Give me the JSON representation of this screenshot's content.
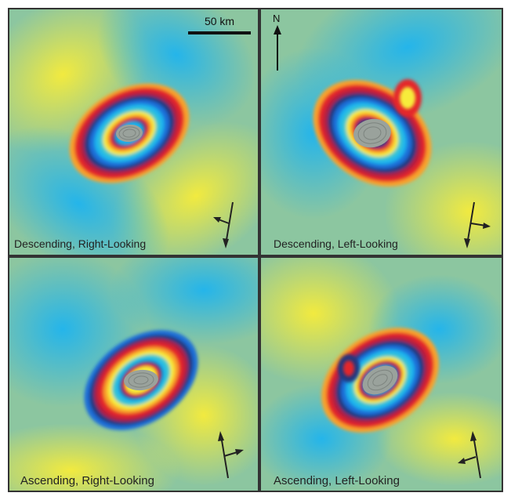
{
  "scale_bar": {
    "label": "50 km"
  },
  "north_arrow": {
    "label": "N"
  },
  "panels": [
    {
      "label": "Descending, Right-Looking",
      "orbit": "descending",
      "look": "right"
    },
    {
      "label": "Descending, Left-Looking",
      "orbit": "descending",
      "look": "left"
    },
    {
      "label": "Ascending, Right-Looking",
      "orbit": "ascending",
      "look": "right"
    },
    {
      "label": "Ascending, Left-Looking",
      "orbit": "ascending",
      "look": "left"
    }
  ],
  "colors": {
    "background": "#8cc6a0",
    "fringe_cycle": [
      "#f7ec3a",
      "#f9a22a",
      "#e4262b",
      "#b21e3f",
      "#23377f",
      "#1b6ed8",
      "#1fb4ee",
      "#3bc7cf"
    ],
    "core": "#9aa29c",
    "frame": "#333333"
  },
  "icons": [
    "north-arrow-icon",
    "look-direction-icon"
  ]
}
